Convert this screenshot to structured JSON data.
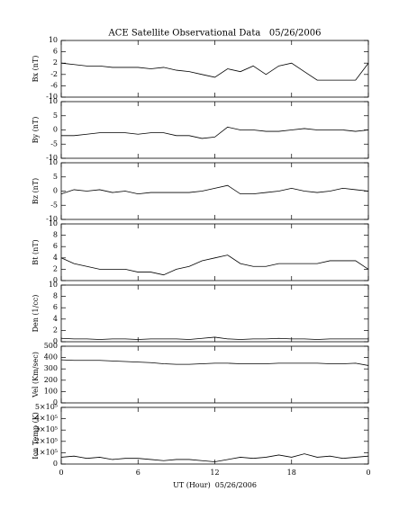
{
  "chart_data": [
    {
      "type": "line",
      "title": "ACE Satellite Observational Data   05/26/2006",
      "ylabel": "Bx (nT)",
      "color": "#000000",
      "x": [
        0,
        1,
        2,
        3,
        4,
        5,
        6,
        7,
        8,
        9,
        10,
        11,
        12,
        13,
        14,
        15,
        16,
        17,
        18,
        19,
        20,
        21,
        22,
        23,
        24
      ],
      "values": [
        2,
        1.5,
        1,
        1,
        0.5,
        0.5,
        0.5,
        0,
        0.5,
        -0.5,
        -1,
        -2,
        -3,
        0,
        -1,
        1,
        -2,
        1,
        2,
        -1,
        -4,
        -4,
        -4,
        -4,
        2
      ],
      "xlim": [
        0,
        24
      ],
      "ylim": [
        -10,
        10
      ],
      "yticks": [
        -10,
        -6,
        -2,
        2,
        6,
        10
      ]
    },
    {
      "type": "line",
      "ylabel": "By (nT)",
      "color": "#000000",
      "x": [
        0,
        1,
        2,
        3,
        4,
        5,
        6,
        7,
        8,
        9,
        10,
        11,
        12,
        13,
        14,
        15,
        16,
        17,
        18,
        19,
        20,
        21,
        22,
        23,
        24
      ],
      "values": [
        -2,
        -2,
        -1.5,
        -1,
        -1,
        -1,
        -1.5,
        -1,
        -1,
        -2,
        -2,
        -3,
        -2.5,
        1,
        0,
        0,
        -0.5,
        -0.5,
        0,
        0.5,
        0,
        0,
        0,
        -0.5,
        0
      ],
      "xlim": [
        0,
        24
      ],
      "ylim": [
        -10,
        10
      ],
      "yticks": [
        -10,
        -5,
        0,
        5,
        10
      ]
    },
    {
      "type": "line",
      "ylabel": "Bz (nT)",
      "color": "#000000",
      "x": [
        0,
        1,
        2,
        3,
        4,
        5,
        6,
        7,
        8,
        9,
        10,
        11,
        12,
        13,
        14,
        15,
        16,
        17,
        18,
        19,
        20,
        21,
        22,
        23,
        24
      ],
      "values": [
        -1,
        0.5,
        0,
        0.5,
        -0.5,
        0,
        -1,
        -0.5,
        -0.5,
        -0.5,
        -0.5,
        0,
        1,
        2,
        -1,
        -1,
        -0.5,
        0,
        1,
        0,
        -0.5,
        0,
        1,
        0.5,
        0
      ],
      "xlim": [
        0,
        24
      ],
      "ylim": [
        -10,
        10
      ],
      "yticks": [
        -10,
        -5,
        0,
        5,
        10
      ]
    },
    {
      "type": "line",
      "ylabel": "Bt (nT)",
      "color": "#000000",
      "x": [
        0,
        1,
        2,
        3,
        4,
        5,
        6,
        7,
        8,
        9,
        10,
        11,
        12,
        13,
        14,
        15,
        16,
        17,
        18,
        19,
        20,
        21,
        22,
        23,
        24
      ],
      "values": [
        4,
        3,
        2.5,
        2,
        2,
        2,
        1.5,
        1.5,
        1,
        2,
        2.5,
        3.5,
        4,
        4.5,
        3,
        2.5,
        2.5,
        3,
        3,
        3,
        3,
        3.5,
        3.5,
        3.5,
        2
      ],
      "xlim": [
        0,
        24
      ],
      "ylim": [
        0,
        10
      ],
      "yticks": [
        0,
        2,
        4,
        6,
        8,
        10
      ]
    },
    {
      "type": "line",
      "ylabel": "Den (1/cc)",
      "color": "#000000",
      "x": [
        0,
        1,
        2,
        3,
        4,
        5,
        6,
        7,
        8,
        9,
        10,
        11,
        12,
        13,
        14,
        15,
        16,
        17,
        18,
        19,
        20,
        21,
        22,
        23,
        24
      ],
      "values": [
        0.6,
        0.5,
        0.5,
        0.4,
        0.5,
        0.5,
        0.4,
        0.5,
        0.5,
        0.5,
        0.4,
        0.6,
        0.8,
        0.5,
        0.4,
        0.5,
        0.5,
        0.6,
        0.5,
        0.5,
        0.4,
        0.5,
        0.5,
        0.5,
        0.5
      ],
      "xlim": [
        0,
        24
      ],
      "ylim": [
        0,
        10
      ],
      "yticks": [
        0,
        2,
        4,
        6,
        8,
        10
      ]
    },
    {
      "type": "line",
      "ylabel": "Vel (Km/sec)",
      "color": "#000000",
      "x": [
        0,
        1,
        2,
        3,
        4,
        5,
        6,
        7,
        8,
        9,
        10,
        11,
        12,
        13,
        14,
        15,
        16,
        17,
        18,
        19,
        20,
        21,
        22,
        23,
        24
      ],
      "values": [
        380,
        375,
        375,
        375,
        370,
        365,
        360,
        355,
        345,
        340,
        340,
        345,
        350,
        350,
        345,
        345,
        345,
        350,
        350,
        350,
        350,
        345,
        345,
        350,
        330
      ],
      "xlim": [
        0,
        24
      ],
      "ylim": [
        0,
        500
      ],
      "yticks": [
        0,
        100,
        200,
        300,
        400,
        500
      ]
    },
    {
      "type": "line",
      "ylabel": "Ion Temp (K)",
      "xlabel": "UT (Hour)  05/26/2006",
      "color": "#000000",
      "x": [
        0,
        1,
        2,
        3,
        4,
        5,
        6,
        7,
        8,
        9,
        10,
        11,
        12,
        13,
        14,
        15,
        16,
        17,
        18,
        19,
        20,
        21,
        22,
        23,
        24
      ],
      "values": [
        60000,
        70000,
        50000,
        60000,
        40000,
        50000,
        50000,
        40000,
        30000,
        40000,
        40000,
        30000,
        20000,
        40000,
        60000,
        50000,
        60000,
        80000,
        60000,
        90000,
        60000,
        70000,
        50000,
        60000,
        70000
      ],
      "xlim": [
        0,
        24
      ],
      "ylim": [
        0,
        500000
      ],
      "yticks": [
        0,
        {
          "value": 100000,
          "label": "1×10⁵"
        },
        {
          "value": 200000,
          "label": "2×10⁵"
        },
        {
          "value": 300000,
          "label": "3×10⁵"
        },
        {
          "value": 400000,
          "label": "4×10⁵"
        },
        {
          "value": 500000,
          "label": "5×10⁵"
        }
      ],
      "xticks": [
        0,
        6,
        12,
        18,
        {
          "value": 24,
          "label": "0"
        }
      ]
    }
  ]
}
